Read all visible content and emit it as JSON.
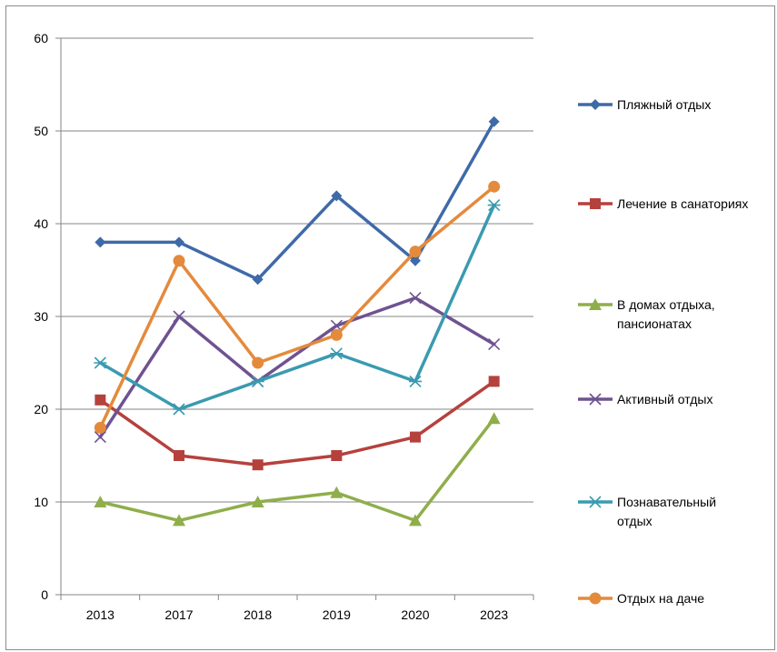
{
  "chart_data": {
    "type": "line",
    "title": "",
    "xlabel": "",
    "ylabel": "",
    "categories": [
      "2013",
      "2017",
      "2018",
      "2019",
      "2020",
      "2023"
    ],
    "ylim": [
      0,
      60
    ],
    "yticks": [
      0,
      10,
      20,
      30,
      40,
      50,
      60
    ],
    "grid": true,
    "legend_position": "right",
    "series": [
      {
        "name": "Пляжный отдых",
        "name_lines": [
          "Пляжный отдых"
        ],
        "values": [
          38,
          38,
          34,
          43,
          36,
          51
        ],
        "color": "#3F6AA8",
        "marker": "diamond"
      },
      {
        "name": "Лечение в санаториях",
        "name_lines": [
          "Лечение в санаториях"
        ],
        "values": [
          21,
          15,
          14,
          15,
          17,
          23
        ],
        "color": "#B5413D",
        "marker": "square"
      },
      {
        "name": "В домах отдыха, пансионатах",
        "name_lines": [
          "В домах отдыха,",
          "пансионатах"
        ],
        "values": [
          10,
          8,
          10,
          11,
          8,
          19
        ],
        "color": "#8FAE4B",
        "marker": "triangle"
      },
      {
        "name": "Активный отдых",
        "name_lines": [
          "Активный отдых"
        ],
        "values": [
          17,
          30,
          23,
          29,
          32,
          27
        ],
        "color": "#6F5291",
        "marker": "x"
      },
      {
        "name": "Познавательный отдых",
        "name_lines": [
          "Познавательный",
          "отдых"
        ],
        "values": [
          25,
          20,
          23,
          26,
          23,
          42
        ],
        "color": "#3A9AB0",
        "marker": "star"
      },
      {
        "name": "Отдых на даче",
        "name_lines": [
          "Отдых на даче"
        ],
        "values": [
          18,
          36,
          25,
          28,
          37,
          44
        ],
        "color": "#E48A3C",
        "marker": "circle"
      }
    ]
  }
}
